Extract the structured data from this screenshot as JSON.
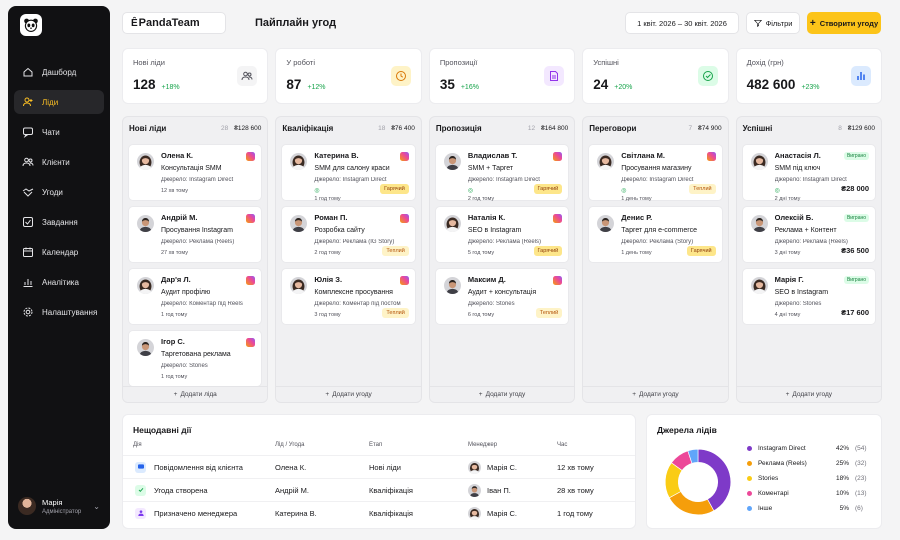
{
  "brand": "PandaTeam",
  "page_title": "Пайплайн угод",
  "date_range": "1 квіт. 2026 – 30 квіт. 2026",
  "filters_label": "Фільтри",
  "create_label": "Створити угоду",
  "nav": [
    {
      "label": "Дашборд",
      "icon": "home-icon",
      "active": false
    },
    {
      "label": "Ліди",
      "icon": "user-plus-icon",
      "active": true
    },
    {
      "label": "Чати",
      "icon": "chat-icon",
      "active": false
    },
    {
      "label": "Клієнти",
      "icon": "users-icon",
      "active": false
    },
    {
      "label": "Угоди",
      "icon": "handshake-icon",
      "active": false
    },
    {
      "label": "Завдання",
      "icon": "checkbox-icon",
      "active": false
    },
    {
      "label": "Календар",
      "icon": "calendar-icon",
      "active": false
    },
    {
      "label": "Аналітика",
      "icon": "analytics-icon",
      "active": false
    },
    {
      "label": "Налаштування",
      "icon": "gear-icon",
      "active": false
    }
  ],
  "user": {
    "name": "Марія",
    "role": "Адміністратор"
  },
  "stats": [
    {
      "label": "Нові ліди",
      "value": "128",
      "change": "+18%",
      "icon": "users-icon",
      "color": "#f4f4f5",
      "icon_color": "#52525b"
    },
    {
      "label": "У роботі",
      "value": "87",
      "change": "+12%",
      "icon": "clock-icon",
      "color": "#fef3c7",
      "icon_color": "#d97706"
    },
    {
      "label": "Пропозиції",
      "value": "35",
      "change": "+16%",
      "icon": "document-icon",
      "color": "#f3e8ff",
      "icon_color": "#9333ea"
    },
    {
      "label": "Успішні",
      "value": "24",
      "change": "+20%",
      "icon": "check-circle-icon",
      "color": "#dcfce7",
      "icon_color": "#16a34a"
    },
    {
      "label": "Дохід (грн)",
      "value": "482 600",
      "change": "+23%",
      "icon": "bar-chart-icon",
      "color": "#dbeafe",
      "icon_color": "#2563eb"
    }
  ],
  "columns": [
    {
      "title": "Нові ліди",
      "count": "28",
      "sum": "₴128 600",
      "add_label": "Додати ліда",
      "cards": [
        {
          "name": "Олена К.",
          "service": "Консультація SMM",
          "source": "Джерело: Instagram Direct",
          "time": "12 хв тому",
          "tag": "",
          "won": "",
          "amount": "",
          "ig": true,
          "avatar": "woman"
        },
        {
          "name": "Андрій М.",
          "service": "Просування Instagram",
          "source": "Джерело: Реклама (Reels)",
          "time": "27 хв тому",
          "tag": "",
          "won": "",
          "amount": "",
          "ig": true,
          "avatar": "man"
        },
        {
          "name": "Дар'я Л.",
          "service": "Аудит профілю",
          "source": "Джерело: Коментар під Reels",
          "time": "1 год тому",
          "tag": "",
          "won": "",
          "amount": "",
          "ig": true,
          "avatar": "woman"
        },
        {
          "name": "Ігор С.",
          "service": "Таргетована реклама",
          "source": "Джерело: Stories",
          "time": "1 год тому",
          "tag": "",
          "won": "",
          "amount": "",
          "ig": true,
          "avatar": "man"
        }
      ]
    },
    {
      "title": "Кваліфікація",
      "count": "18",
      "sum": "₴76 400",
      "add_label": "Додати угоду",
      "cards": [
        {
          "name": "Катерина В.",
          "service": "SMM для салону краси",
          "source": "Джерело: Instagram Direct",
          "time": "1 год тому",
          "wa": "◎",
          "tag": "Гарячий",
          "won": "",
          "amount": "",
          "ig": true,
          "avatar": "woman"
        },
        {
          "name": "Роман П.",
          "service": "Розробка сайту",
          "source": "Джерело: Реклама (IG Story)",
          "time": "2 год тому",
          "tag": "Теплий",
          "won": "",
          "amount": "",
          "ig": true,
          "avatar": "man"
        },
        {
          "name": "Юлія З.",
          "service": "Комплексне просування",
          "source": "Джерело: Коментар під постом",
          "time": "3 год тому",
          "tag": "Теплий",
          "won": "",
          "amount": "",
          "ig": true,
          "avatar": "woman"
        }
      ]
    },
    {
      "title": "Пропозиція",
      "count": "12",
      "sum": "₴164 800",
      "add_label": "Додати угоду",
      "cards": [
        {
          "name": "Владислав Т.",
          "service": "SMM + Таргет",
          "source": "Джерело: Instagram Direct",
          "time": "2 год тому",
          "wa": "◎",
          "tag": "Гарячий",
          "won": "",
          "amount": "",
          "ig": true,
          "avatar": "man"
        },
        {
          "name": "Наталія К.",
          "service": "SEO в Instagram",
          "source": "Джерело: Реклама (Reels)",
          "time": "5 год тому",
          "tag": "Гарячий",
          "won": "",
          "amount": "",
          "ig": true,
          "avatar": "woman"
        },
        {
          "name": "Максим Д.",
          "service": "Аудит + консультація",
          "source": "Джерело: Stories",
          "time": "6 год тому",
          "tag": "Теплий",
          "won": "",
          "amount": "",
          "ig": true,
          "avatar": "man"
        }
      ]
    },
    {
      "title": "Переговори",
      "count": "7",
      "sum": "₴74 900",
      "add_label": "Додати угоду",
      "cards": [
        {
          "name": "Світлана М.",
          "service": "Просування магазину",
          "source": "Джерело: Instagram Direct",
          "time": "1 день тому",
          "wa": "◎",
          "tag": "Теплий",
          "won": "",
          "amount": "",
          "ig": true,
          "avatar": "woman"
        },
        {
          "name": "Денис Р.",
          "service": "Таргет для e-commerce",
          "source": "Джерело: Реклама (Story)",
          "time": "1 день тому",
          "tag": "Гарячий",
          "won": "",
          "amount": "",
          "ig": false,
          "avatar": "man"
        }
      ]
    },
    {
      "title": "Успішні",
      "count": "8",
      "sum": "₴129 600",
      "add_label": "Додати угоду",
      "cards": [
        {
          "name": "Анастасія Л.",
          "service": "SMM під ключ",
          "source": "Джерело: Instagram Direct",
          "time": "2 дні тому",
          "wa": "◎",
          "tag": "",
          "won": "Виграно",
          "amount": "₴28 000",
          "ig": false,
          "avatar": "woman"
        },
        {
          "name": "Олексій Б.",
          "service": "Реклама + Контент",
          "source": "Джерело: Реклама (Reels)",
          "time": "3 дні тому",
          "tag": "",
          "won": "Виграно",
          "amount": "₴36 500",
          "ig": false,
          "avatar": "man"
        },
        {
          "name": "Марія Г.",
          "service": "SEO в Instagram",
          "source": "Джерело: Stories",
          "time": "4 дні тому",
          "tag": "",
          "won": "Виграно",
          "amount": "₴17 600",
          "ig": false,
          "avatar": "woman"
        }
      ]
    }
  ],
  "recent": {
    "title": "Нещодавні дії",
    "headers": [
      "Дія",
      "Лід / Угода",
      "Етап",
      "Менеджер",
      "Час"
    ],
    "rows": [
      {
        "action": "Повідомлення від клієнта",
        "lead": "Олена К.",
        "stage": "Нові ліди",
        "manager": "Марія С.",
        "time": "12 хв тому",
        "icon": "message-icon",
        "color": "#dbeafe",
        "icon_color": "#2563eb"
      },
      {
        "action": "Угода створена",
        "lead": "Андрій М.",
        "stage": "Кваліфікація",
        "manager": "Іван П.",
        "time": "28 хв тому",
        "icon": "check-icon",
        "color": "#dcfce7",
        "icon_color": "#16a34a"
      },
      {
        "action": "Призначено менеджера",
        "lead": "Катерина В.",
        "stage": "Кваліфікація",
        "manager": "Марія С.",
        "time": "1 год тому",
        "icon": "user-icon",
        "color": "#f3e8ff",
        "icon_color": "#7c3aed"
      }
    ]
  },
  "sources": {
    "title": "Джерела лідів",
    "items": [
      {
        "name": "Instagram Direct",
        "pct": "42%",
        "count": "(54)",
        "value": 42,
        "color": "#7e3ac8"
      },
      {
        "name": "Реклама (Reels)",
        "pct": "25%",
        "count": "(32)",
        "value": 25,
        "color": "#f59e0b"
      },
      {
        "name": "Stories",
        "pct": "18%",
        "count": "(23)",
        "value": 18,
        "color": "#facc15"
      },
      {
        "name": "Коментарі",
        "pct": "10%",
        "count": "(13)",
        "value": 10,
        "color": "#ec4899"
      },
      {
        "name": "Інше",
        "pct": "5%",
        "count": "(6)",
        "value": 5,
        "color": "#60a5fa"
      }
    ]
  }
}
